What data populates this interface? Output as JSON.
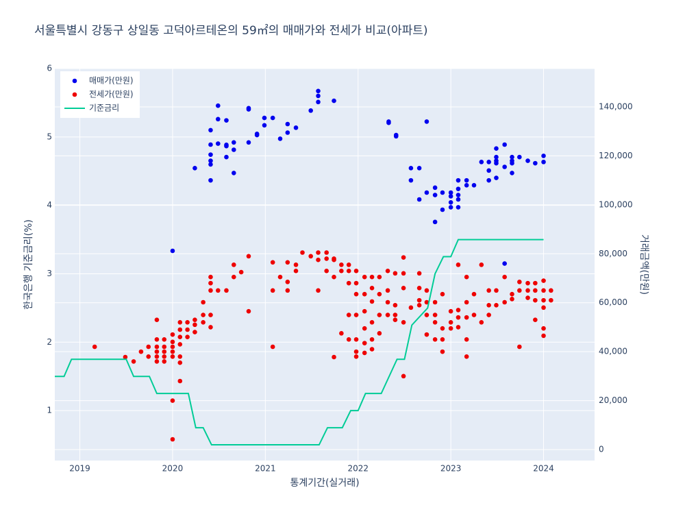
{
  "chart_data": {
    "type": "scatter",
    "title": "서울특별시 강동구 상일동 고덕아르테온의 59㎡의 매매가와 전세가 비교(아파트)",
    "xlabel": "통계기간(실거래)",
    "ylabel": "한국은행 기준금리(%)",
    "y2label": "거래금액(만원)",
    "xlim": [
      2018.73,
      2024.55
    ],
    "xticks": [
      2019,
      2020,
      2021,
      2022,
      2023,
      2024
    ],
    "ylim": [
      0.27,
      6
    ],
    "yticks": [
      1,
      2,
      3,
      4,
      5,
      6
    ],
    "y2lim": [
      -4480,
      155680
    ],
    "y2ticks": [
      0,
      {
        "value": 20000,
        "label": "20,000"
      },
      {
        "value": 40000,
        "label": "40,000"
      },
      {
        "value": 60000,
        "label": "60,000"
      },
      {
        "value": 80000,
        "label": "80,000"
      },
      {
        "value": 100000,
        "label": "100,000"
      },
      {
        "value": 120000,
        "label": "120,000"
      },
      {
        "value": 140000,
        "label": "140,000"
      }
    ],
    "grid": true,
    "legend": "top-left",
    "series": [
      {
        "name": "매매가(만원)",
        "color": "#0000ee",
        "mode": "markers",
        "axis": "y2",
        "x": [
          2020.0,
          2020.24,
          2020.41,
          2020.41,
          2020.41,
          2020.41,
          2020.41,
          2020.41,
          2020.49,
          2020.49,
          2020.49,
          2020.58,
          2020.58,
          2020.58,
          2020.58,
          2020.66,
          2020.66,
          2020.66,
          2020.82,
          2020.82,
          2020.82,
          2020.91,
          2020.91,
          2020.99,
          2020.99,
          2021.08,
          2021.16,
          2021.24,
          2021.24,
          2021.33,
          2021.49,
          2021.57,
          2021.57,
          2021.57,
          2021.74,
          2022.33,
          2022.33,
          2022.41,
          2022.41,
          2022.57,
          2022.57,
          2022.66,
          2022.66,
          2022.74,
          2022.74,
          2022.83,
          2022.83,
          2022.83,
          2022.91,
          2022.91,
          2023.0,
          2023.0,
          2023.0,
          2023.0,
          2023.08,
          2023.08,
          2023.08,
          2023.08,
          2023.08,
          2023.17,
          2023.17,
          2023.25,
          2023.33,
          2023.41,
          2023.41,
          2023.41,
          2023.49,
          2023.49,
          2023.49,
          2023.49,
          2023.49,
          2023.58,
          2023.58,
          2023.58,
          2023.66,
          2023.66,
          2023.66,
          2023.66,
          2023.74,
          2023.83,
          2023.91,
          2024.0,
          2024.0
        ],
        "values": [
          81200,
          115000,
          110000,
          116500,
          118000,
          120500,
          124600,
          130500,
          140500,
          135000,
          125000,
          134500,
          124500,
          119500,
          124000,
          122500,
          125500,
          113000,
          139500,
          139000,
          125500,
          128500,
          129000,
          132500,
          135500,
          135500,
          127000,
          129500,
          133000,
          131500,
          138500,
          146500,
          144500,
          142000,
          142500,
          134000,
          133500,
          128500,
          128000,
          115000,
          110000,
          115000,
          102200,
          134000,
          105000,
          107000,
          104000,
          93000,
          105000,
          98000,
          105000,
          103500,
          101000,
          99000,
          110000,
          106500,
          104000,
          102200,
          99000,
          110000,
          108000,
          108000,
          117500,
          117500,
          114000,
          110000,
          123000,
          119500,
          118000,
          117000,
          111000,
          124600,
          115500,
          76000,
          119500,
          118000,
          117000,
          113000,
          119500,
          118000,
          117000,
          120000,
          117500
        ]
      },
      {
        "name": "전세가(만원)",
        "color": "#ee0000",
        "mode": "markers",
        "axis": "y2",
        "x": [
          2019.16,
          2019.49,
          2019.58,
          2019.66,
          2019.74,
          2019.74,
          2019.83,
          2019.83,
          2019.83,
          2019.83,
          2019.83,
          2019.83,
          2019.91,
          2019.91,
          2019.91,
          2019.91,
          2019.91,
          2020.0,
          2020.0,
          2020.0,
          2020.0,
          2020.0,
          2020.0,
          2020.0,
          2020.08,
          2020.08,
          2020.08,
          2020.08,
          2020.08,
          2020.08,
          2020.08,
          2020.16,
          2020.16,
          2020.16,
          2020.24,
          2020.24,
          2020.24,
          2020.33,
          2020.33,
          2020.33,
          2020.41,
          2020.41,
          2020.41,
          2020.41,
          2020.41,
          2020.49,
          2020.58,
          2020.66,
          2020.66,
          2020.74,
          2020.82,
          2020.82,
          2021.08,
          2021.08,
          2021.08,
          2021.16,
          2021.24,
          2021.24,
          2021.24,
          2021.33,
          2021.33,
          2021.4,
          2021.49,
          2021.57,
          2021.57,
          2021.57,
          2021.66,
          2021.66,
          2021.66,
          2021.74,
          2021.74,
          2021.74,
          2021.74,
          2021.82,
          2021.82,
          2021.82,
          2021.9,
          2021.9,
          2021.9,
          2021.9,
          2021.9,
          2021.98,
          2021.98,
          2021.98,
          2021.98,
          2021.98,
          2021.98,
          2021.98,
          2022.07,
          2022.07,
          2022.07,
          2022.07,
          2022.07,
          2022.07,
          2022.15,
          2022.15,
          2022.15,
          2022.15,
          2022.15,
          2022.15,
          2022.23,
          2022.23,
          2022.23,
          2022.23,
          2022.32,
          2022.32,
          2022.32,
          2022.32,
          2022.4,
          2022.4,
          2022.4,
          2022.4,
          2022.49,
          2022.49,
          2022.49,
          2022.49,
          2022.49,
          2022.57,
          2022.66,
          2022.66,
          2022.66,
          2022.66,
          2022.74,
          2022.74,
          2022.74,
          2022.74,
          2022.83,
          2022.83,
          2022.83,
          2022.83,
          2022.91,
          2022.91,
          2022.91,
          2022.91,
          2023.0,
          2023.0,
          2023.0,
          2023.08,
          2023.08,
          2023.08,
          2023.08,
          2023.17,
          2023.17,
          2023.17,
          2023.17,
          2023.17,
          2023.25,
          2023.25,
          2023.33,
          2023.33,
          2023.41,
          2023.41,
          2023.41,
          2023.49,
          2023.49,
          2023.58,
          2023.58,
          2023.66,
          2023.66,
          2023.74,
          2023.74,
          2023.74,
          2023.83,
          2023.83,
          2023.83,
          2023.91,
          2023.91,
          2023.91,
          2023.91,
          2024.0,
          2024.0,
          2024.0,
          2024.0,
          2024.0,
          2024.0,
          2024.08,
          2024.08
        ],
        "values": [
          42000,
          37800,
          36000,
          40000,
          42000,
          38000,
          53000,
          45000,
          42000,
          40000,
          38000,
          36000,
          45000,
          42000,
          40000,
          38000,
          36000,
          20000,
          4200,
          42000,
          40000,
          47000,
          44000,
          38000,
          28000,
          52000,
          49000,
          46000,
          43000,
          38000,
          35500,
          52000,
          49000,
          46000,
          53000,
          51000,
          48000,
          60200,
          55000,
          52000,
          70500,
          68000,
          65000,
          55000,
          50000,
          65000,
          65000,
          75500,
          70500,
          72500,
          79000,
          56500,
          76500,
          65000,
          42000,
          70500,
          76500,
          68500,
          65000,
          75500,
          73000,
          80500,
          79000,
          80500,
          77500,
          65000,
          80500,
          78000,
          73000,
          78000,
          77500,
          70500,
          37800,
          75500,
          73000,
          47500,
          75500,
          73000,
          68000,
          55000,
          45000,
          73000,
          68000,
          63500,
          55000,
          45000,
          40000,
          38000,
          70500,
          63500,
          56500,
          49500,
          43500,
          39500,
          70500,
          66000,
          60500,
          52000,
          45000,
          41000,
          70500,
          63500,
          55000,
          47500,
          73000,
          65000,
          60200,
          55000,
          72000,
          59000,
          55000,
          53000,
          78500,
          72000,
          66000,
          52000,
          30000,
          58000,
          72000,
          66000,
          61000,
          59000,
          65000,
          60200,
          55000,
          47000,
          60200,
          55000,
          52000,
          45000,
          63500,
          49500,
          45000,
          40000,
          56500,
          52000,
          49500,
          75500,
          57000,
          54000,
          50000,
          70500,
          60200,
          54000,
          45000,
          38000,
          63500,
          55000,
          75500,
          52000,
          65000,
          59000,
          55000,
          65000,
          59000,
          70500,
          60200,
          63500,
          61500,
          68500,
          65000,
          42000,
          68000,
          65000,
          62000,
          68000,
          65000,
          61000,
          53000,
          69000,
          65000,
          61000,
          58000,
          49500,
          46500,
          65000,
          61000
        ]
      },
      {
        "name": "기준금리",
        "color": "#00cc96",
        "mode": "lines",
        "axis": "y",
        "x": [
          2018.73,
          2018.83,
          2018.91,
          2019.5,
          2019.58,
          2019.75,
          2019.83,
          2020.17,
          2020.25,
          2020.33,
          2020.42,
          2021.58,
          2021.67,
          2021.83,
          2021.92,
          2022.0,
          2022.08,
          2022.25,
          2022.42,
          2022.5,
          2022.58,
          2022.75,
          2022.83,
          2022.92,
          2023.0,
          2023.08,
          2024.0
        ],
        "values": [
          1.5,
          1.5,
          1.75,
          1.75,
          1.5,
          1.5,
          1.25,
          1.25,
          0.75,
          0.75,
          0.5,
          0.5,
          0.75,
          0.75,
          1.0,
          1.0,
          1.25,
          1.25,
          1.75,
          1.75,
          2.25,
          2.5,
          3.0,
          3.25,
          3.25,
          3.5,
          3.5
        ]
      }
    ]
  }
}
